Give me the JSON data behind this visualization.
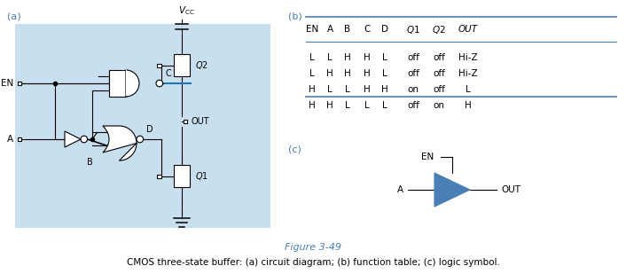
{
  "title_figure": "Figure 3-49",
  "caption": "CMOS three-state buffer: (a) circuit diagram; (b) function table; (c) logic symbol.",
  "label_a": "(a)",
  "label_b": "(b)",
  "label_c": "(c)",
  "bg_color": "#cce0f0",
  "blue_color": "#4a7fb5",
  "light_blue": "#c8dff0",
  "table_header": [
    "EN",
    "A",
    "B",
    "C",
    "D",
    "Q1",
    "Q2",
    "OUT"
  ],
  "table_rows": [
    [
      "L",
      "L",
      "H",
      "H",
      "L",
      "off",
      "off",
      "Hi-Z"
    ],
    [
      "L",
      "H",
      "H",
      "H",
      "L",
      "off",
      "off",
      "Hi-Z"
    ],
    [
      "H",
      "L",
      "L",
      "H",
      "H",
      "on",
      "off",
      "L"
    ],
    [
      "H",
      "H",
      "L",
      "L",
      "L",
      "off",
      "on",
      "H"
    ]
  ],
  "vcc_label": "V_CC",
  "en_label": "EN",
  "a_label": "A",
  "out_label": "OUT",
  "q1_label": "Q1",
  "q2_label": "Q2",
  "b_label": "B",
  "c_label": "C",
  "d_label": "D"
}
